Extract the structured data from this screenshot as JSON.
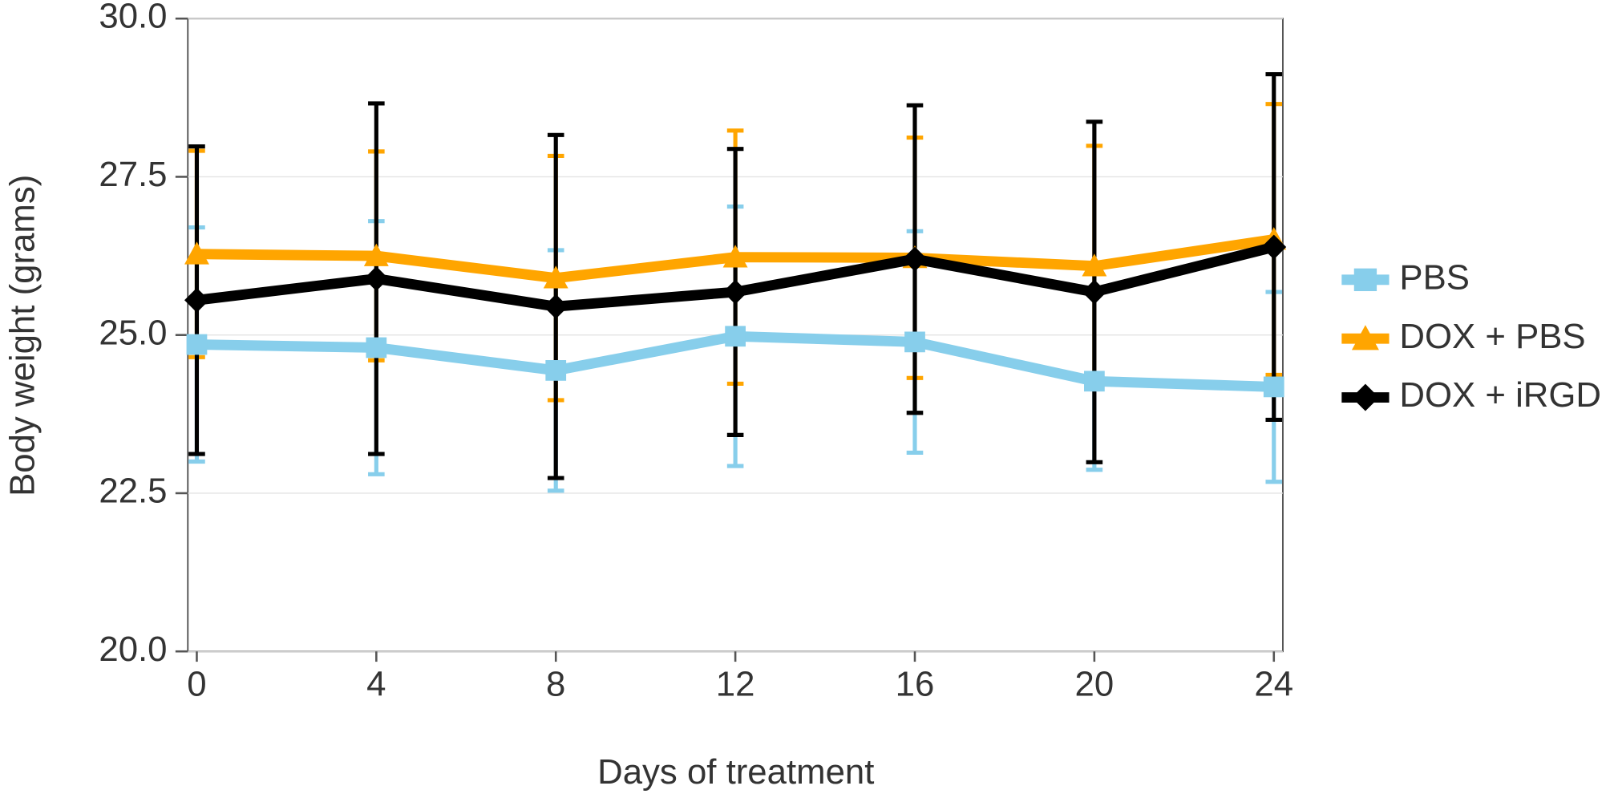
{
  "chart_data": {
    "type": "line",
    "xlabel": "Days of treatment",
    "ylabel": "Body weight (grams)",
    "x": [
      0,
      4,
      8,
      12,
      16,
      20,
      24
    ],
    "xlim": [
      -0.2,
      24.2
    ],
    "xticks": [
      0,
      4,
      8,
      12,
      16,
      20,
      24
    ],
    "ylim": [
      20,
      30
    ],
    "yticks": [
      {
        "value": 20,
        "label": "20.0"
      },
      {
        "value": 22.5,
        "label": "22.5"
      },
      {
        "value": 25,
        "label": "25.0"
      },
      {
        "value": 27.5,
        "label": "27.5"
      },
      {
        "value": 30,
        "label": "30.0"
      }
    ],
    "grid": true,
    "legend": "right",
    "series": [
      {
        "name": "PBS",
        "color": "#87ceeb",
        "marker": "square",
        "values": [
          24.85,
          24.8,
          24.44,
          24.98,
          24.89,
          24.27,
          24.18
        ],
        "errors": [
          1.85,
          2.0,
          1.9,
          2.05,
          1.75,
          1.4,
          1.5
        ]
      },
      {
        "name": "DOX + PBS",
        "color": "#ffa500",
        "marker": "triangle",
        "values": [
          26.28,
          26.25,
          25.9,
          26.23,
          26.22,
          26.09,
          26.51
        ],
        "errors": [
          1.63,
          1.65,
          1.93,
          2.0,
          1.9,
          1.9,
          2.14
        ]
      },
      {
        "name": "DOX + iRGD",
        "color": "#000000",
        "marker": "diamond",
        "values": [
          25.55,
          25.89,
          25.45,
          25.68,
          26.2,
          25.68,
          26.39
        ],
        "errors": [
          2.43,
          2.77,
          2.71,
          2.26,
          2.43,
          2.69,
          2.73
        ]
      }
    ]
  }
}
